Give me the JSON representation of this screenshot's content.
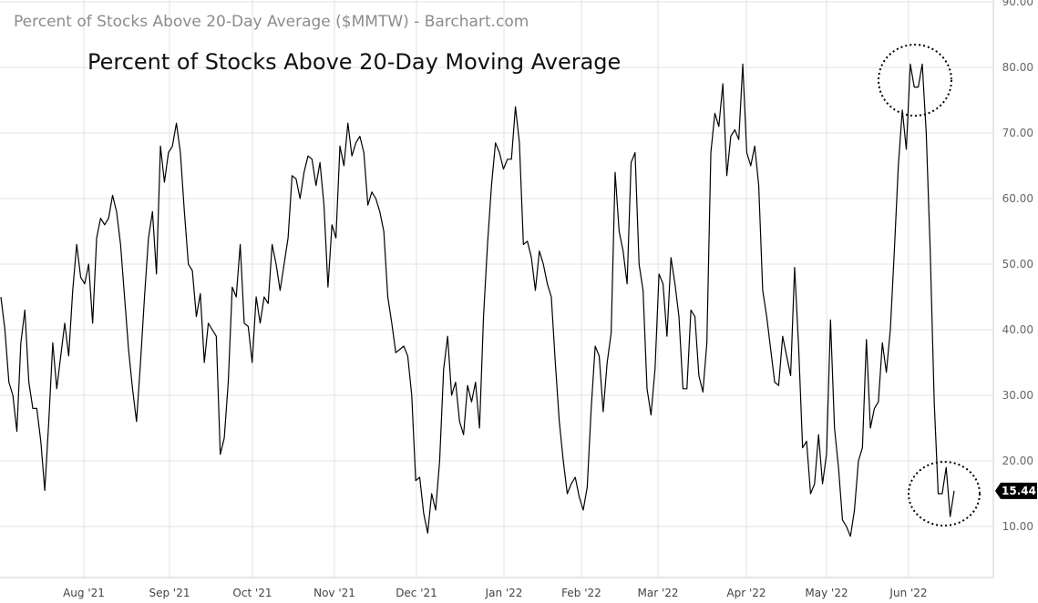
{
  "chart_data": {
    "type": "line",
    "header": "Percent of Stocks Above 20-Day Average ($MMTW) - Barchart.com",
    "title": "Percent of Stocks Above 20-Day Moving Average",
    "xlabel": "",
    "ylabel": "",
    "ylim": [
      0,
      90
    ],
    "y_ticks": [
      "10.00",
      "20.00",
      "30.00",
      "40.00",
      "50.00",
      "60.00",
      "70.00",
      "80.00",
      "90.00"
    ],
    "x_ticks": [
      "Aug '21",
      "Sep '21",
      "Oct '21",
      "Nov '21",
      "Dec '21",
      "Jan '22",
      "Feb '22",
      "Mar '22",
      "Apr '22",
      "May '22",
      "Jun '22"
    ],
    "grid": true,
    "last_value": "15.44",
    "series": [
      {
        "values": [
          45,
          40,
          32,
          30,
          24.5,
          38,
          43,
          32,
          28,
          28,
          23,
          15.5,
          26,
          38,
          31,
          36,
          41,
          36,
          46,
          53,
          48,
          47,
          50,
          41,
          54,
          57,
          56,
          57,
          60.5,
          58,
          53,
          45,
          37,
          31,
          26,
          35,
          45,
          54,
          58,
          48.5,
          68,
          62.5,
          67,
          68,
          71.5,
          67,
          58,
          50,
          49,
          42,
          45.5,
          35,
          41,
          40,
          39,
          21,
          23.5,
          32,
          46.5,
          45,
          53,
          41,
          40.5,
          35,
          45,
          41,
          45,
          44,
          53,
          50,
          46,
          50,
          54,
          63.5,
          63,
          60,
          64,
          66.5,
          66,
          62,
          65.5,
          59,
          46.5,
          56,
          54,
          68,
          65,
          71.5,
          66.5,
          68.5,
          69.5,
          67,
          59,
          61,
          60,
          58,
          55,
          45,
          41,
          36.5,
          37,
          37.5,
          36,
          30,
          17,
          17.5,
          12,
          9,
          15,
          12.5,
          20,
          34,
          39,
          30,
          32,
          26,
          24,
          31.5,
          29,
          32,
          25,
          42,
          53,
          62,
          68.5,
          67,
          64.5,
          66,
          66,
          74,
          68.5,
          53,
          53.5,
          51,
          46,
          52,
          50,
          47,
          45,
          35,
          26,
          20,
          15,
          16.5,
          17.5,
          14.5,
          12.5,
          16,
          28,
          37.5,
          36,
          27.5,
          35,
          39.5,
          64,
          55,
          52,
          47,
          65.5,
          67,
          50,
          46,
          31,
          27,
          34,
          48.5,
          47,
          39,
          51,
          47,
          42,
          31,
          31,
          43,
          42,
          33,
          30.5,
          38,
          67,
          73,
          71,
          77.5,
          63.5,
          69.5,
          70.5,
          69,
          80.5,
          67,
          65,
          68,
          62,
          46,
          42,
          37,
          32,
          31.5,
          39,
          36,
          33,
          49.5,
          37.5,
          22,
          23,
          15,
          16.5,
          24,
          16.5,
          21,
          41.5,
          25,
          19,
          11,
          10,
          8.5,
          12.5,
          20,
          22,
          38.5,
          25,
          28,
          29,
          38,
          33.5,
          40,
          52,
          65,
          73.5,
          67.5,
          80.5,
          77,
          77,
          80.5,
          70,
          52,
          29,
          15,
          15,
          19,
          11.5,
          15.44
        ]
      }
    ]
  }
}
